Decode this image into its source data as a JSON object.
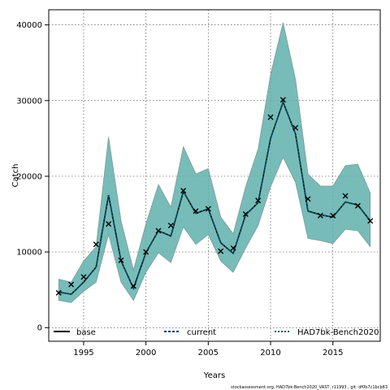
{
  "chart_data": {
    "type": "line",
    "xlabel": "Years",
    "ylabel": "Catch",
    "xlim": [
      1992.2,
      2018.8
    ],
    "ylim": [
      -1800,
      42000
    ],
    "xticks": [
      1995,
      2000,
      2005,
      2010,
      2015
    ],
    "yticks": [
      0,
      10000,
      20000,
      30000,
      40000
    ],
    "grid": true,
    "grid_style": "dotted",
    "legend_position": "bottom",
    "footnote": "stockassessment.org, HAD7bk-Bench2020_VAST, r11993 , git: df0b7c1bcb83",
    "colors": {
      "band": "#5fb0ad",
      "band_edge": "#7a9a98",
      "line": "#000000",
      "current_line": "#0a3a6e",
      "bench_line": "#0a5a50"
    },
    "years": [
      1993,
      1994,
      1995,
      1996,
      1997,
      1998,
      1999,
      2000,
      2001,
      2002,
      2003,
      2004,
      2005,
      2006,
      2007,
      2008,
      2009,
      2010,
      2011,
      2012,
      2013,
      2014,
      2015,
      2016,
      2017,
      2018
    ],
    "series": [
      {
        "name": "base",
        "style": "solid",
        "values": [
          4700,
          4400,
          6000,
          8000,
          17500,
          8800,
          5200,
          9900,
          12800,
          12100,
          18000,
          15100,
          15700,
          11200,
          9800,
          14900,
          16500,
          25000,
          29800,
          25600,
          15400,
          14900,
          14600,
          16600,
          16200,
          14100
        ]
      },
      {
        "name": "current",
        "style": "dashed",
        "values": [
          4700,
          4400,
          6000,
          8000,
          17500,
          8800,
          5200,
          9900,
          12800,
          12100,
          18000,
          15100,
          15700,
          11200,
          9800,
          14900,
          16500,
          25000,
          29800,
          25600,
          15400,
          14900,
          14600,
          16600,
          16200,
          14100
        ]
      },
      {
        "name": "HAD7bk-Bench2020",
        "style": "dashed",
        "values": [
          4700,
          4400,
          6000,
          8000,
          17500,
          8800,
          5200,
          9900,
          12800,
          12100,
          18000,
          15100,
          15700,
          11200,
          9800,
          14900,
          16500,
          25000,
          29800,
          25600,
          15400,
          14900,
          14600,
          16600,
          16200,
          14100
        ],
        "upper": [
          6400,
          6000,
          8800,
          10700,
          25200,
          14100,
          7600,
          13700,
          18900,
          15900,
          23900,
          20300,
          21000,
          14600,
          12400,
          18600,
          23600,
          33400,
          40300,
          32800,
          20300,
          18700,
          18700,
          21400,
          21600,
          17800
        ],
        "lower": [
          3600,
          3300,
          4800,
          6000,
          12300,
          6000,
          3600,
          7300,
          9900,
          8600,
          13300,
          11000,
          12300,
          8800,
          7300,
          10500,
          13500,
          18600,
          22500,
          19200,
          11800,
          11500,
          11100,
          13000,
          12800,
          10700
        ]
      }
    ],
    "observed": {
      "marker": "x",
      "values": [
        4600,
        5700,
        6700,
        11000,
        13700,
        8900,
        5500,
        10000,
        12800,
        13500,
        18100,
        15400,
        15700,
        10100,
        10500,
        15000,
        16800,
        27800,
        30100,
        26400,
        17000,
        14800,
        14800,
        17400,
        16100,
        14100
      ]
    }
  }
}
